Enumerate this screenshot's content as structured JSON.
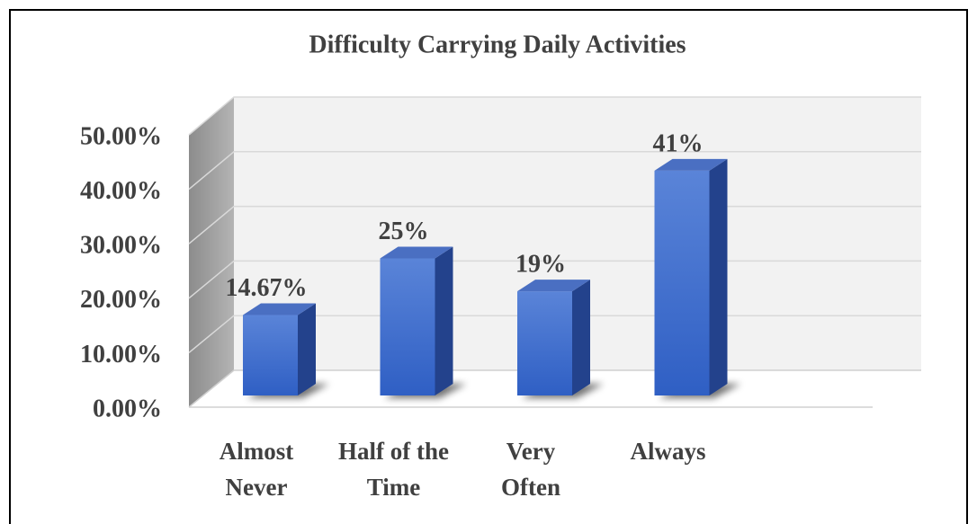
{
  "chart_data": {
    "type": "bar3d",
    "title": "Difficulty Carrying Daily Activities",
    "categories": [
      "Almost\nNever",
      "Half of the\nTime",
      "Very\nOften",
      "Always"
    ],
    "values": [
      14.67,
      25,
      19,
      41
    ],
    "value_labels": [
      "14.67%",
      "25%",
      "19%",
      "41%"
    ],
    "color": "#3a6ad0",
    "ylim": [
      0,
      50
    ],
    "yticks": [
      {
        "value": 0,
        "label": "0.00%"
      },
      {
        "value": 10,
        "label": "10.00%"
      },
      {
        "value": 20,
        "label": "20.00%"
      },
      {
        "value": 30,
        "label": "30.00%"
      },
      {
        "value": 40,
        "label": "40.00%"
      },
      {
        "value": 50,
        "label": "50.00%"
      }
    ],
    "grid": true
  }
}
